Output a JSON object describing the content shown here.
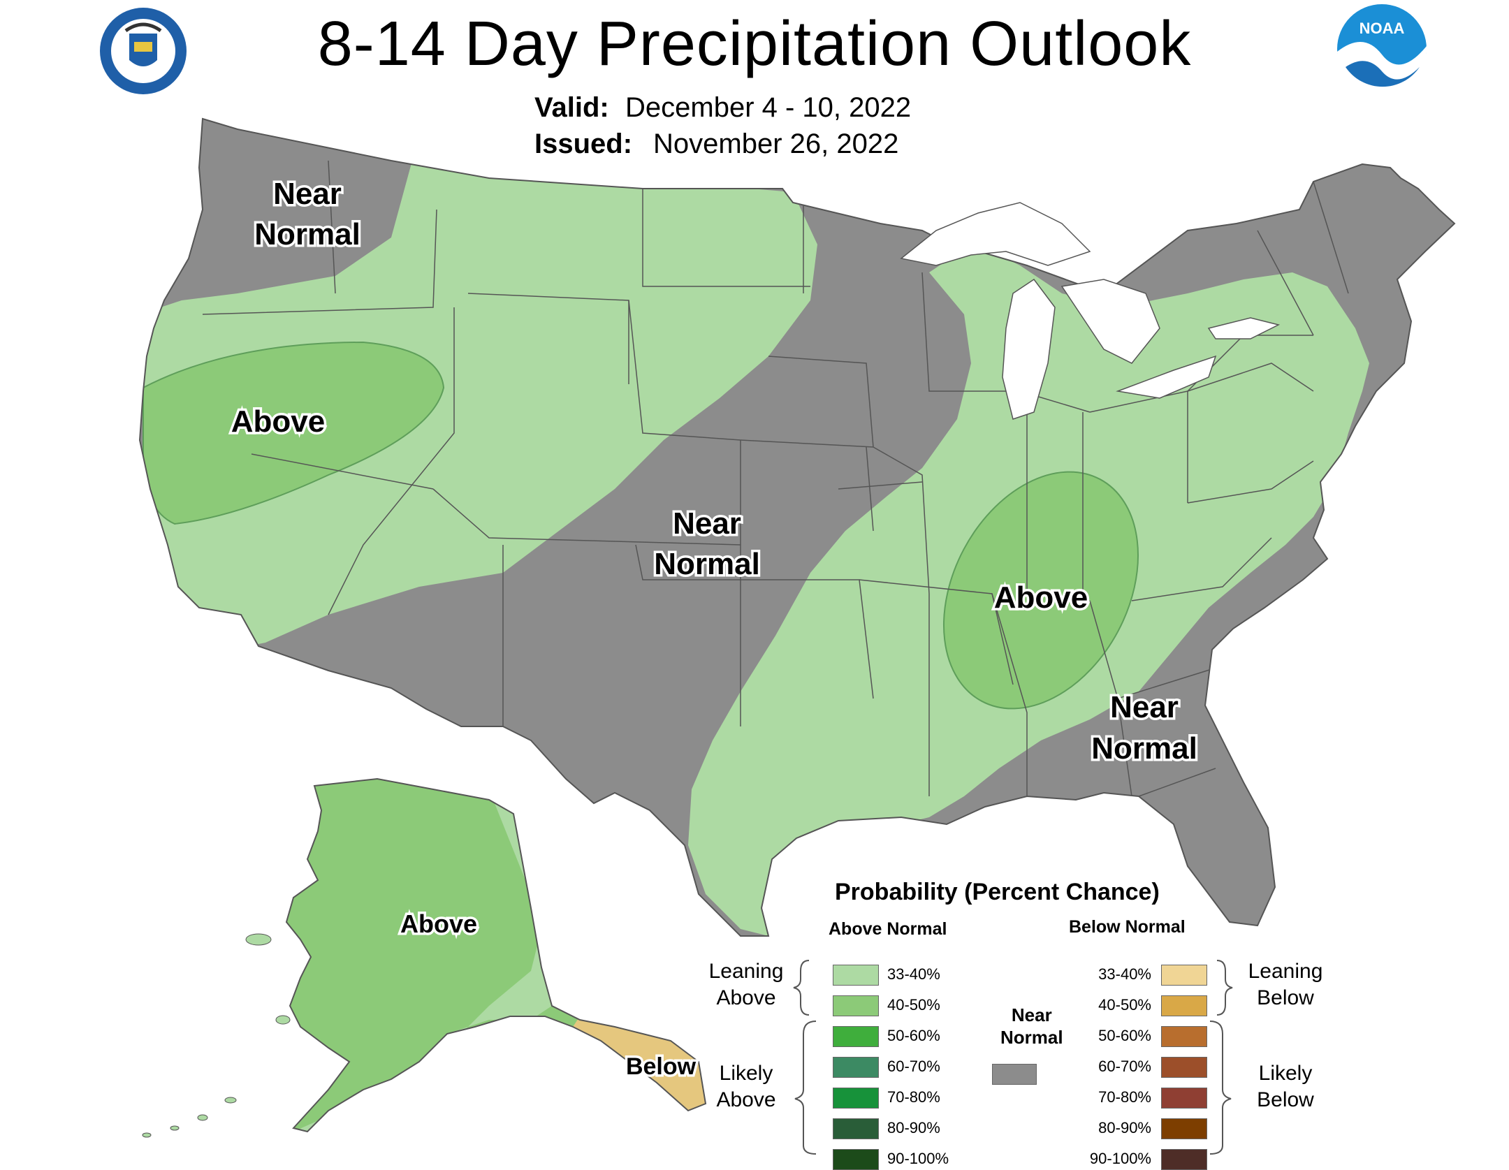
{
  "header": {
    "title": "8-14 Day Precipitation Outlook",
    "valid_label": "Valid:",
    "valid_value": "December 4 - 10, 2022",
    "issued_label": "Issued:",
    "issued_value": "November 26, 2022"
  },
  "logos": {
    "left": "doc-seal-icon",
    "right": "noaa-logo-icon",
    "noaa_text": "NOAA"
  },
  "map_labels": {
    "nw": [
      "Near",
      "Normal"
    ],
    "ca": "Above",
    "central": [
      "Near",
      "Normal"
    ],
    "ohio_valley": "Above",
    "southeast": [
      "Near",
      "Normal"
    ],
    "alaska": "Above",
    "alaska_se": "Below"
  },
  "legend": {
    "title": "Probability (Percent Chance)",
    "above_heading": "Above Normal",
    "below_heading": "Below Normal",
    "near_heading": [
      "Near",
      "Normal"
    ],
    "leaning_above": [
      "Leaning",
      "Above"
    ],
    "likely_above": [
      "Likely",
      "Above"
    ],
    "leaning_below": [
      "Leaning",
      "Below"
    ],
    "likely_below": [
      "Likely",
      "Below"
    ],
    "above": [
      {
        "range": "33-40%",
        "color": "#addaa3"
      },
      {
        "range": "40-50%",
        "color": "#8cca78"
      },
      {
        "range": "50-60%",
        "color": "#3fae3c"
      },
      {
        "range": "60-70%",
        "color": "#3c8a63"
      },
      {
        "range": "70-80%",
        "color": "#17923a"
      },
      {
        "range": "80-90%",
        "color": "#295d38"
      },
      {
        "range": "90-100%",
        "color": "#1c4b1a"
      }
    ],
    "below": [
      {
        "range": "33-40%",
        "color": "#f0d595"
      },
      {
        "range": "40-50%",
        "color": "#d9a847"
      },
      {
        "range": "50-60%",
        "color": "#b86e2e"
      },
      {
        "range": "60-70%",
        "color": "#9c4f2a"
      },
      {
        "range": "70-80%",
        "color": "#8f3f33"
      },
      {
        "range": "80-90%",
        "color": "#7d3e00"
      },
      {
        "range": "90-100%",
        "color": "#4e2d27"
      }
    ],
    "near_color": "#8c8c8c"
  },
  "colors": {
    "gray": "#8c8c8c",
    "light_green": "#addaa3",
    "mid_green": "#8cca78",
    "tan": "#e5c77e"
  }
}
